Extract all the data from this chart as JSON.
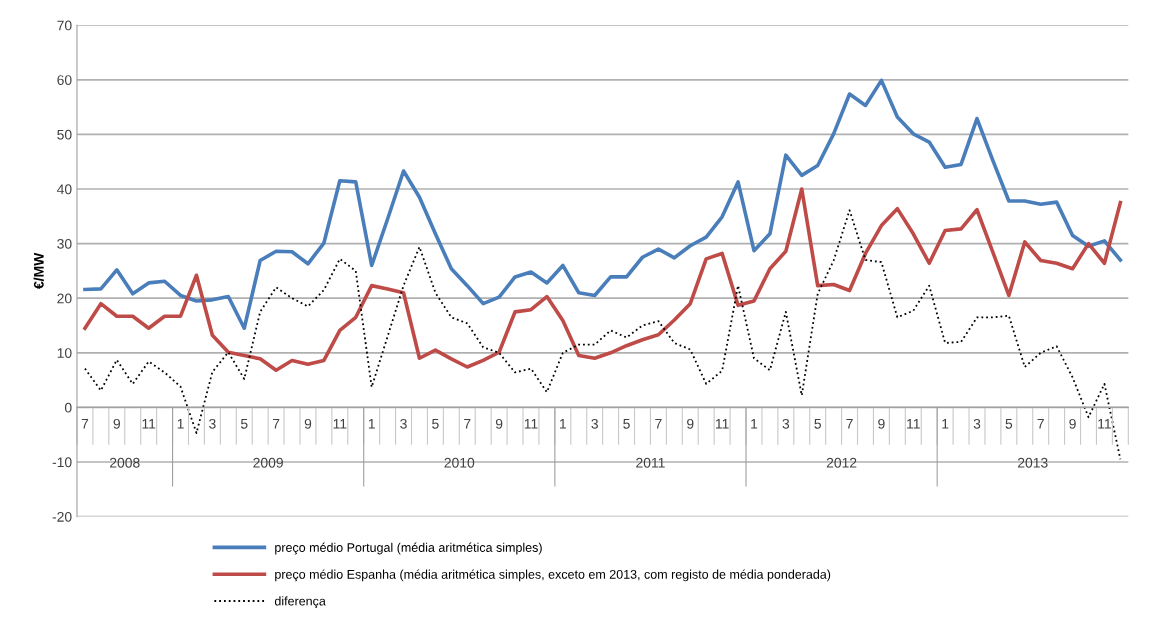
{
  "chart_data": {
    "type": "line",
    "ylabel": "€/MW",
    "categories": [
      "7",
      null,
      "9",
      null,
      "11",
      null,
      "1",
      null,
      "3",
      null,
      "5",
      null,
      "7",
      null,
      "9",
      null,
      "11",
      null,
      "1",
      null,
      "3",
      null,
      "5",
      null,
      "7",
      null,
      "9",
      null,
      "11",
      null,
      "1",
      null,
      "3",
      null,
      "5",
      null,
      "7",
      null,
      "9",
      null,
      "11",
      null,
      "1",
      null,
      "3",
      null,
      "5",
      null,
      "7",
      null,
      "9",
      null,
      "11",
      null,
      "1",
      null,
      "3",
      null,
      "5",
      null,
      "7",
      null,
      "9",
      null,
      "11",
      null
    ],
    "annotations": [
      "2008",
      "2009",
      "2010",
      "2011",
      "2012",
      "2013"
    ],
    "series": [
      {
        "name": "preço médio Portugal (média aritmética simples)",
        "color": "#4a7ebb",
        "line_style": "solid",
        "values": [
          21.6,
          21.7,
          25.2,
          20.8,
          22.8,
          23.1,
          20.5,
          19.5,
          19.7,
          20.3,
          14.5,
          26.9,
          28.6,
          28.5,
          26.3,
          30.1,
          41.5,
          41.3,
          26.0,
          34.5,
          43.3,
          38.5,
          31.8,
          25.4,
          22.3,
          19.0,
          20.2,
          23.9,
          24.8,
          22.8,
          26.0,
          21.0,
          20.5,
          23.9,
          23.9,
          27.5,
          29.0,
          27.4,
          29.6,
          31.2,
          34.9,
          41.3,
          28.7,
          31.8,
          46.2,
          42.5,
          44.3,
          50.1,
          57.4,
          55.3,
          59.9,
          53.2,
          50.1,
          48.6,
          44.0,
          44.5,
          52.9,
          45.2,
          37.8,
          37.8,
          37.2,
          37.6,
          31.5,
          29.5,
          30.5,
          27.0
        ]
      },
      {
        "name": "preço médio Espanha (média aritmética simples, exceto em 2013, com registo de média ponderada)",
        "color": "#be4b48",
        "line_style": "solid",
        "values": [
          14.5,
          19.0,
          16.7,
          16.7,
          14.5,
          16.7,
          16.7,
          24.2,
          13.2,
          10.1,
          9.5,
          8.9,
          6.8,
          8.6,
          7.9,
          8.6,
          14.1,
          16.5,
          22.3,
          21.7,
          21.0,
          9.0,
          10.5,
          8.9,
          7.4,
          8.6,
          10.1,
          17.5,
          17.9,
          20.3,
          15.9,
          9.5,
          9.0,
          10.0,
          11.3,
          12.4,
          13.3,
          16.0,
          19.0,
          27.2,
          28.2,
          18.7,
          19.5,
          25.4,
          28.6,
          40.0,
          22.3,
          22.5,
          21.4,
          28.2,
          33.3,
          36.4,
          31.8,
          26.4,
          32.4,
          32.7,
          36.2,
          28.4,
          20.5,
          30.3,
          26.9,
          26.4,
          25.4,
          30.0,
          26.4,
          37.5
        ]
      },
      {
        "name": "diferença",
        "color": "#000000",
        "line_style": "dotted",
        "values": [
          7.1,
          3.1,
          8.7,
          4.3,
          8.4,
          6.4,
          3.8,
          -4.7,
          6.5,
          10.1,
          5.2,
          17.5,
          22.0,
          20.0,
          18.5,
          21.5,
          27.2,
          25.0,
          3.7,
          13.0,
          22.3,
          29.4,
          21.0,
          16.5,
          15.4,
          11.0,
          10.0,
          6.4,
          7.1,
          2.8,
          10.0,
          11.5,
          11.5,
          14.1,
          12.8,
          15.0,
          15.8,
          11.8,
          10.6,
          4.3,
          6.7,
          22.3,
          9.0,
          6.8,
          17.5,
          2.2,
          20.8,
          26.9,
          36.1,
          27.0,
          26.6,
          16.5,
          17.7,
          22.3,
          11.8,
          12.0,
          16.5,
          16.5,
          16.8,
          7.4,
          10.0,
          11.2,
          5.5,
          -1.8,
          4.3,
          -9.5
        ]
      }
    ],
    "ylim": [
      -20,
      70
    ],
    "yticks": [
      -20,
      -10,
      0,
      10,
      20,
      30,
      40,
      50,
      60,
      70
    ],
    "grid": "y",
    "legend": "bottom"
  }
}
